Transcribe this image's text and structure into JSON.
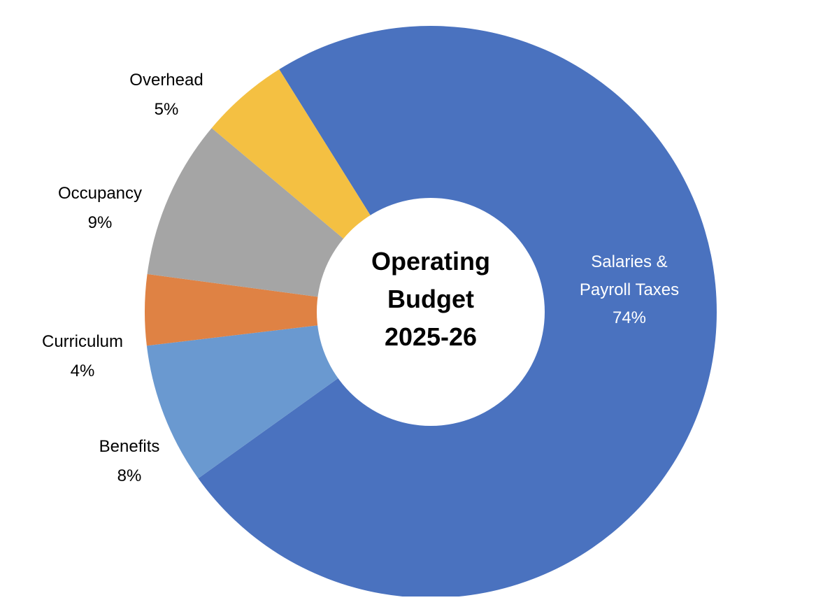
{
  "chart_data": {
    "type": "pie",
    "variant": "donut",
    "center_title": [
      "Operating",
      "Budget",
      "2025-26"
    ],
    "slices": [
      {
        "label": [
          "Salaries &",
          "Payroll Taxes"
        ],
        "percent_label": "74%",
        "value": 74,
        "color": "#4a72bf",
        "label_inside": true
      },
      {
        "label": [
          "Benefits"
        ],
        "percent_label": "8%",
        "value": 8,
        "color": "#6a99d0",
        "label_inside": false
      },
      {
        "label": [
          "Curriculum"
        ],
        "percent_label": "4%",
        "value": 4,
        "color": "#df8244",
        "label_inside": false
      },
      {
        "label": [
          "Occupancy"
        ],
        "percent_label": "9%",
        "value": 9,
        "color": "#a5a5a5",
        "label_inside": false
      },
      {
        "label": [
          "Overhead"
        ],
        "percent_label": "5%",
        "value": 5,
        "color": "#f4c042",
        "label_inside": false
      }
    ],
    "legend": "none"
  }
}
